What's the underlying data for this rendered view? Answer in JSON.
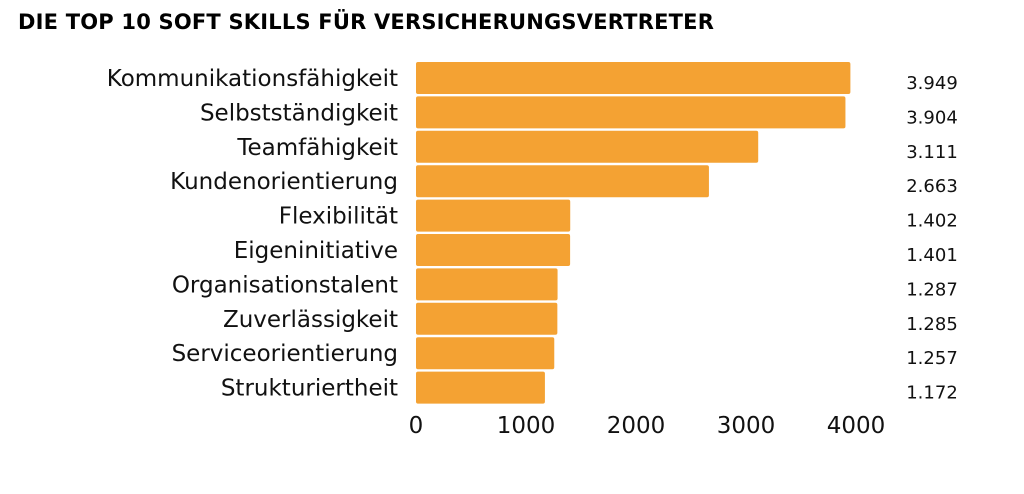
{
  "chart_data": {
    "type": "bar",
    "orientation": "horizontal",
    "title": "DIE TOP 10 SOFT SKILLS FÜR VERSICHERUNGSVERTRETER",
    "xlabel": "",
    "ylabel": "",
    "categories": [
      "Kommunikationsfähigkeit",
      "Selbstständigkeit",
      "Teamfähigkeit",
      "Kundenorientierung",
      "Flexibilität",
      "Eigeninitiative",
      "Organisationstalent",
      "Zuverlässigkeit",
      "Serviceorientierung",
      "Strukturiertheit"
    ],
    "values": [
      3949,
      3904,
      3111,
      2663,
      1402,
      1401,
      1287,
      1285,
      1257,
      1172
    ],
    "value_labels": [
      "3.949",
      "3.904",
      "3.111",
      "2.663",
      "1.402",
      "1.401",
      "1.287",
      "1.285",
      "1.257",
      "1.172"
    ],
    "xlim": [
      0,
      4000
    ],
    "xticks": [
      0,
      1000,
      2000,
      3000,
      4000
    ],
    "xtick_labels": [
      "0",
      "1000",
      "2000",
      "3000",
      "4000"
    ],
    "grid": false,
    "legend": "none",
    "colors": {
      "bar": "#F4A233",
      "text": "#111111"
    }
  }
}
